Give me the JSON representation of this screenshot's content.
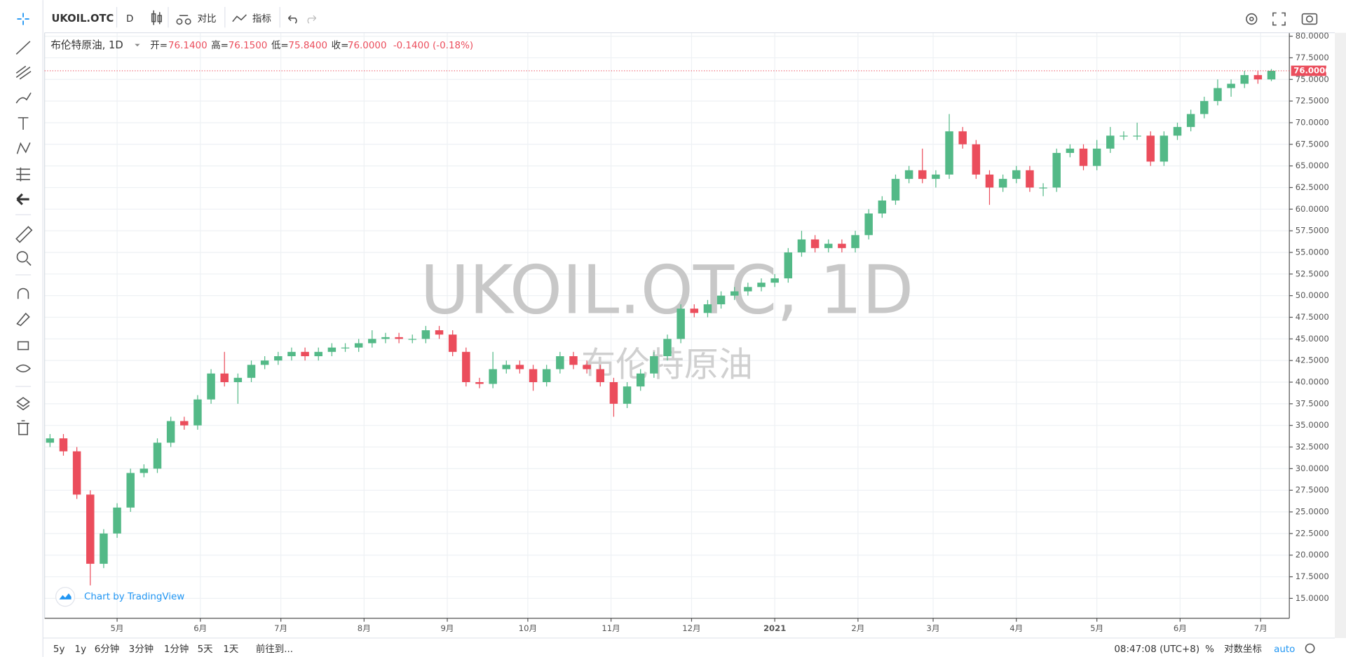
{
  "toolbar": {
    "symbol": "UKOIL.OTC",
    "interval": "D",
    "compare": "对比",
    "indicators": "指标"
  },
  "legend": {
    "name": "布伦特原油, 1D",
    "open_label": "开=",
    "open": "76.1400",
    "high_label": "高=",
    "high": "76.1500",
    "low_label": "低=",
    "low": "75.8400",
    "close_label": "收=",
    "close": "76.0000",
    "change": "-0.1400 (-0.18%)"
  },
  "branding": "Chart by TradingView",
  "footer": {
    "ranges": [
      "5y",
      "1y",
      "6分钟",
      "3分钟",
      "1分钟",
      "5天",
      "1天"
    ],
    "goto": "前往到...",
    "time": "08:47:08 (UTC+8)",
    "percent": "%",
    "log": "对数坐标",
    "auto": "auto"
  },
  "chart_data": {
    "type": "candlestick",
    "watermark": "UKOIL.OTC, 1D",
    "watermark_sub": "布伦特原油",
    "x": [
      2,
      7,
      12,
      17,
      22,
      27,
      32,
      37,
      42,
      47,
      52,
      57,
      62,
      67,
      72,
      77,
      82,
      87,
      92,
      97,
      102,
      107,
      112,
      117,
      122,
      127,
      132,
      137,
      142,
      147,
      152,
      157,
      162,
      167,
      172,
      177,
      182,
      187,
      192,
      197,
      202,
      207,
      212,
      217,
      222,
      227,
      232,
      237,
      242,
      247,
      252,
      257,
      262,
      267,
      272,
      277,
      282,
      287,
      292,
      297,
      302,
      307,
      312,
      317,
      322,
      327,
      332,
      337,
      342,
      347,
      352,
      357,
      362,
      367,
      372,
      377,
      382,
      387,
      392,
      397,
      402,
      407,
      412,
      417,
      422,
      427,
      432,
      437,
      442,
      447,
      452,
      457
    ],
    "open": [
      33,
      33.5,
      32,
      27,
      19,
      22.5,
      25.5,
      29.5,
      30,
      33,
      35.5,
      35,
      38,
      41,
      40,
      40.5,
      42,
      42.5,
      43,
      43.5,
      43,
      43.5,
      44,
      44,
      44.5,
      45,
      45.2,
      45,
      45,
      46,
      45.5,
      43.5,
      40,
      39.8,
      41.5,
      42,
      41.5,
      40,
      41.5,
      43,
      42,
      41.5,
      40,
      37.5,
      39.5,
      41,
      43,
      45,
      48.5,
      48,
      49,
      50,
      50.5,
      51,
      51.5,
      52,
      55,
      56.5,
      55.5,
      56,
      55.5,
      57,
      59.5,
      61,
      63.5,
      64.5,
      63.5,
      64,
      69,
      67.5,
      64,
      62.5,
      63.5,
      64.5,
      62.5,
      62.5,
      66.5,
      67,
      65,
      67,
      68.5,
      68.5,
      68.5,
      65.5,
      68.5,
      69.5,
      71,
      72.5,
      74,
      74.5,
      75.5,
      75
    ],
    "high": [
      34,
      34,
      32.5,
      27.5,
      23,
      26,
      30,
      30.5,
      33.5,
      36,
      36,
      38.5,
      41.5,
      43.5,
      41,
      42.5,
      43,
      43.5,
      44,
      44,
      44,
      44.5,
      44.5,
      45,
      46,
      45.7,
      45.7,
      45.5,
      46.5,
      46.5,
      46,
      44,
      40.5,
      43.5,
      42.5,
      42.5,
      42,
      42,
      43.5,
      43.5,
      42.5,
      42,
      40.5,
      40,
      41.5,
      43.5,
      45.5,
      49,
      49,
      49.5,
      50.5,
      51,
      51.5,
      52,
      52.5,
      55.5,
      57.5,
      57,
      56.5,
      56.5,
      57.5,
      60,
      61.5,
      64,
      65,
      67,
      64.5,
      71,
      69.5,
      68,
      64.5,
      64,
      65,
      65,
      63,
      67,
      67.5,
      67.5,
      68,
      69.5,
      69,
      70,
      69,
      69,
      70,
      71.5,
      73,
      75,
      75,
      76,
      76,
      76.2
    ],
    "low": [
      32.5,
      31.5,
      26.5,
      16.5,
      18.5,
      22,
      25,
      29,
      29.5,
      32.5,
      34.5,
      34.5,
      37.5,
      39.5,
      37.5,
      40,
      41.5,
      42,
      42.5,
      42.5,
      42.5,
      43,
      43.5,
      43.5,
      44,
      44.5,
      44.5,
      44.5,
      44.5,
      45,
      43,
      39.5,
      39.3,
      39.3,
      41,
      41,
      39,
      39.5,
      41,
      41.5,
      41,
      39.5,
      36,
      37,
      39,
      40.5,
      42.5,
      44.5,
      47.5,
      47.5,
      48.5,
      49.5,
      50,
      50.5,
      51,
      51.5,
      54.5,
      55,
      55,
      55,
      55,
      56.5,
      59,
      60.5,
      63,
      63,
      62.5,
      63.5,
      67,
      63.5,
      60.5,
      62,
      63,
      62,
      61.5,
      62,
      66,
      64.5,
      64.5,
      66.5,
      68,
      68,
      65,
      65,
      68,
      69,
      70.5,
      72,
      73,
      74,
      74.5,
      74.8
    ],
    "close": [
      33.5,
      32,
      27,
      19,
      22.5,
      25.5,
      29.5,
      30,
      33,
      35.5,
      35,
      38,
      41,
      40,
      40.5,
      42,
      42.5,
      43,
      43.5,
      43,
      43.5,
      44,
      44,
      44.5,
      45,
      45.2,
      45,
      45,
      46,
      45.5,
      43.5,
      40,
      39.8,
      41.5,
      42,
      41.5,
      40,
      41.5,
      43,
      42,
      41.5,
      40,
      37.5,
      39.5,
      41,
      43,
      45,
      48.5,
      48,
      49,
      50,
      50.5,
      51,
      51.5,
      52,
      55,
      56.5,
      55.5,
      56,
      55.5,
      57,
      59.5,
      61,
      63.5,
      64.5,
      63.5,
      64,
      69,
      67.5,
      64,
      62.5,
      63.5,
      64.5,
      62.5,
      62.5,
      66.5,
      67,
      65,
      67,
      68.5,
      68.5,
      68.5,
      65.5,
      68.5,
      69.5,
      71,
      72.5,
      74,
      74.5,
      75.5,
      75,
      76
    ],
    "up_color": "#53b987",
    "down_color": "#eb4d5c",
    "grid": true,
    "xlim": [
      0,
      463.7
    ],
    "xticks": [
      {
        "value": 27,
        "label": "5月"
      },
      {
        "value": 58,
        "label": "6月"
      },
      {
        "value": 88,
        "label": "7月"
      },
      {
        "value": 119,
        "label": "8月"
      },
      {
        "value": 150,
        "label": "9月"
      },
      {
        "value": 180,
        "label": "10月"
      },
      {
        "value": 211,
        "label": "11月"
      },
      {
        "value": 241,
        "label": "12月"
      },
      {
        "value": 272,
        "label": "2021"
      },
      {
        "value": 303,
        "label": "2月"
      },
      {
        "value": 331,
        "label": "3月"
      },
      {
        "value": 362,
        "label": "4月"
      },
      {
        "value": 392,
        "label": "5月"
      },
      {
        "value": 423,
        "label": "6月"
      },
      {
        "value": 453,
        "label": "7月"
      }
    ],
    "ylim": [
      12.7,
      80.4
    ],
    "yticks": [
      {
        "value": 15,
        "label": "15.0000"
      },
      {
        "value": 17.5,
        "label": "17.5000"
      },
      {
        "value": 20,
        "label": "20.0000"
      },
      {
        "value": 22.5,
        "label": "22.5000"
      },
      {
        "value": 25,
        "label": "25.0000"
      },
      {
        "value": 27.5,
        "label": "27.5000"
      },
      {
        "value": 30,
        "label": "30.0000"
      },
      {
        "value": 32.5,
        "label": "32.5000"
      },
      {
        "value": 35,
        "label": "35.0000"
      },
      {
        "value": 37.5,
        "label": "37.5000"
      },
      {
        "value": 40,
        "label": "40.0000"
      },
      {
        "value": 42.5,
        "label": "42.5000"
      },
      {
        "value": 45,
        "label": "45.0000"
      },
      {
        "value": 47.5,
        "label": "47.5000"
      },
      {
        "value": 50,
        "label": "50.0000"
      },
      {
        "value": 52.5,
        "label": "52.5000"
      },
      {
        "value": 55,
        "label": "55.0000"
      },
      {
        "value": 57.5,
        "label": "57.5000"
      },
      {
        "value": 60,
        "label": "60.0000"
      },
      {
        "value": 62.5,
        "label": "62.5000"
      },
      {
        "value": 65,
        "label": "65.0000"
      },
      {
        "value": 67.5,
        "label": "67.5000"
      },
      {
        "value": 70,
        "label": "70.0000"
      },
      {
        "value": 72.5,
        "label": "72.5000"
      },
      {
        "value": 75,
        "label": "75.0000"
      },
      {
        "value": 77.5,
        "label": "77.5000"
      },
      {
        "value": 80,
        "label": "80.0000"
      }
    ],
    "last_price": {
      "value": 76,
      "label": "76.0000"
    }
  }
}
